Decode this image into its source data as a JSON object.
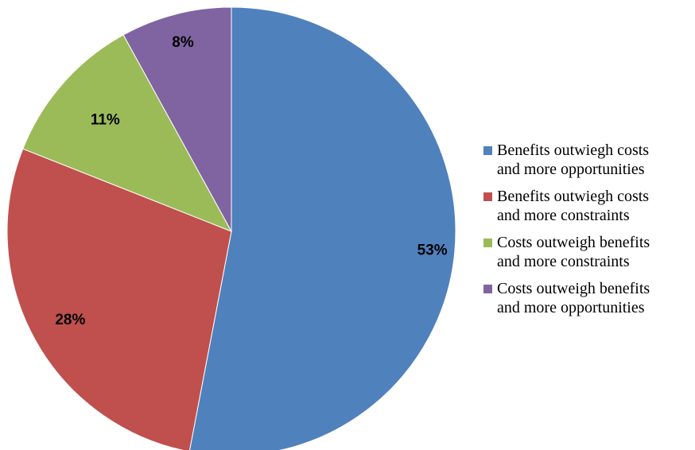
{
  "chart_data": {
    "type": "pie",
    "slices": [
      {
        "name": "Benefits outwiegh costs\nand more opportunities",
        "value": 53,
        "label": "53%",
        "color": "#4F81BD"
      },
      {
        "name": "Benefits outwiegh costs\nand more constraints",
        "value": 28,
        "label": "28%",
        "color": "#C0504D"
      },
      {
        "name": "Costs outweigh benefits\nand more constraints",
        "value": 11,
        "label": "11%",
        "color": "#9BBB59"
      },
      {
        "name": "Costs outweigh benefits\nand more opportunities",
        "value": 8,
        "label": "8%",
        "color": "#8064A2"
      }
    ],
    "start_angle": "top, clockwise",
    "legend_position": "right"
  }
}
